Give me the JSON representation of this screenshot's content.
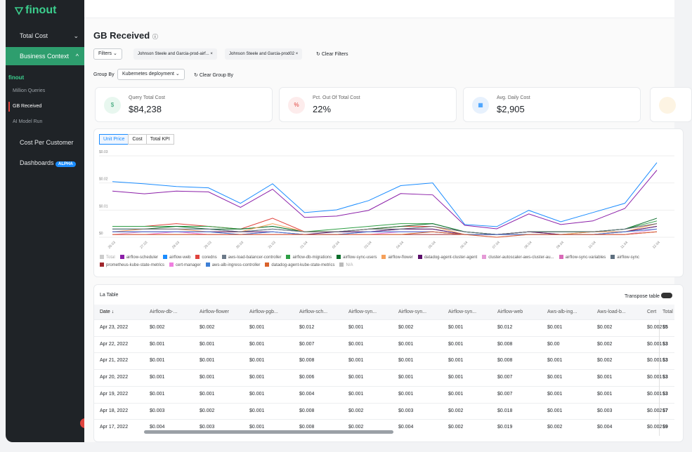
{
  "sidebar": {
    "logo": "finout",
    "items": [
      "Total Cost",
      "Business Context"
    ],
    "section": "finout",
    "subitems": [
      "Million Queries",
      "GB Received",
      "AI Model Run"
    ],
    "bottom_items": [
      "Cost Per Customer",
      "Dashboards"
    ],
    "badge": "ALPHA"
  },
  "header": {
    "title": "GB Received"
  },
  "filters": {
    "button": "Filters",
    "chips": [
      "Johnson Steele and Garcia-prod-airf...",
      "Johnson Steele and Garcia-prod02"
    ],
    "clear": "Clear Filters",
    "group_label": "Group By",
    "group_value": "Kubernetes deployment",
    "group_clear": "Clear Group By"
  },
  "kpis": [
    {
      "label": "Query Total Cost",
      "value": "$84,238"
    },
    {
      "label": "Pct. Out Of Total Cost",
      "value": "22%"
    },
    {
      "label": "Avg. Daily Cost",
      "value": "$2,905"
    }
  ],
  "tabs": [
    "Unit Price",
    "Cost",
    "Total KPI"
  ],
  "chart": {
    "type": "line",
    "categories": [
      "26.03",
      "27.03",
      "28.03",
      "29.03",
      "30.03",
      "31.03",
      "01.04",
      "02.04",
      "03.04",
      "04.04",
      "05.04",
      "06.04",
      "07.04",
      "08.04",
      "09.04",
      "10.04",
      "11.04",
      "12.04"
    ],
    "ylim": [
      0,
      0.03
    ],
    "yticks": [
      {
        "value": 0,
        "label": "$0"
      },
      {
        "value": 0.01,
        "label": "$0.01"
      },
      {
        "value": 0.02,
        "label": "$0.02"
      },
      {
        "value": 0.03,
        "label": "$0.03"
      }
    ],
    "grid": true,
    "series": [
      {
        "name": "Total",
        "color": "#cccccc"
      },
      {
        "name": "airflow-scheduler",
        "color": "#8b1fa8",
        "values": [
          0.017,
          0.016,
          0.017,
          0.0167,
          0.011,
          0.0177,
          0.0073,
          0.0078,
          0.0099,
          0.0161,
          0.0156,
          0.0044,
          0.0031,
          0.0086,
          0.0047,
          0.006,
          0.0106,
          0.0247
        ]
      },
      {
        "name": "airflow-web",
        "color": "#1a8cff",
        "values": [
          0.0205,
          0.0197,
          0.0187,
          0.0182,
          0.0125,
          0.0197,
          0.0091,
          0.0101,
          0.0135,
          0.019,
          0.02,
          0.0047,
          0.0039,
          0.0099,
          0.0057,
          0.0091,
          0.0125,
          0.0275
        ]
      },
      {
        "name": "coredns",
        "color": "#e0443e",
        "values": [
          0.004,
          0.004,
          0.005,
          0.004,
          0.003,
          0.007,
          0.002,
          0.002,
          0.003,
          0.004,
          0.004,
          0.002,
          0.001,
          0.002,
          0.002,
          0.002,
          0.003,
          0.005
        ]
      },
      {
        "name": "aws-load-balancer-controller",
        "color": "#6c7a89",
        "values": [
          0.003,
          0.003,
          0.003,
          0.003,
          0.002,
          0.003,
          0.002,
          0.002,
          0.002,
          0.003,
          0.003,
          0.001,
          0.001,
          0.002,
          0.001,
          0.002,
          0.002,
          0.004
        ]
      },
      {
        "name": "airflow-db-migrations",
        "color": "#2e9e44",
        "values": [
          0.004,
          0.004,
          0.004,
          0.004,
          0.003,
          0.004,
          0.002,
          0.003,
          0.004,
          0.005,
          0.005,
          0.002,
          0.001,
          0.002,
          0.002,
          0.002,
          0.003,
          0.006
        ]
      },
      {
        "name": "airflow-sync-users",
        "color": "#0b6e2b",
        "values": [
          0.003,
          0.003,
          0.004,
          0.003,
          0.003,
          0.004,
          0.002,
          0.002,
          0.003,
          0.004,
          0.005,
          0.002,
          0.001,
          0.002,
          0.002,
          0.002,
          0.003,
          0.007
        ]
      },
      {
        "name": "airflow-flower",
        "color": "#f5a05a",
        "values": [
          0.002,
          0.003,
          0.003,
          0.002,
          0.002,
          0.005,
          0.002,
          0.002,
          0.003,
          0.003,
          0.004,
          0.001,
          0.001,
          0.002,
          0.001,
          0.002,
          0.002,
          0.005
        ]
      },
      {
        "name": "datadog-agent-cluster-agent",
        "color": "#5b0f6b",
        "values": [
          0.002,
          0.002,
          0.002,
          0.002,
          0.002,
          0.002,
          0.001,
          0.002,
          0.002,
          0.003,
          0.003,
          0.001,
          0.001,
          0.002,
          0.001,
          0.001,
          0.002,
          0.004
        ]
      },
      {
        "name": "cluster-autoscaler-aws-cluster-au...",
        "color": "#e59ad6",
        "values": [
          0.001,
          0.002,
          0.002,
          0.001,
          0.001,
          0.002,
          0.001,
          0.001,
          0.002,
          0.002,
          0.002,
          0.001,
          0.001,
          0.001,
          0.001,
          0.001,
          0.001,
          0.003
        ]
      },
      {
        "name": "airflow-sync-variables",
        "color": "#d86ab8",
        "values": [
          0.002,
          0.002,
          0.002,
          0.002,
          0.001,
          0.002,
          0.001,
          0.001,
          0.002,
          0.002,
          0.002,
          0.001,
          0.001,
          0.001,
          0.001,
          0.001,
          0.002,
          0.003
        ]
      },
      {
        "name": "airflow-sync",
        "color": "#5f7080",
        "values": [
          0.003,
          0.003,
          0.003,
          0.003,
          0.002,
          0.003,
          0.002,
          0.002,
          0.003,
          0.003,
          0.004,
          0.002,
          0.001,
          0.002,
          0.002,
          0.002,
          0.003,
          0.005
        ]
      },
      {
        "name": "prometheus-kube-state-metrics",
        "color": "#a0262c",
        "values": [
          0.001,
          0.001,
          0.001,
          0.001,
          0.001,
          0.001,
          0.001,
          0.001,
          0.001,
          0.001,
          0.001,
          0.001,
          0.001,
          0.001,
          0.001,
          0.001,
          0.001,
          0.002
        ]
      },
      {
        "name": "cert-manager",
        "color": "#f07fe0",
        "values": [
          0.001,
          0.001,
          0.002,
          0.001,
          0.001,
          0.001,
          0.001,
          0.001,
          0.001,
          0.002,
          0.002,
          0.001,
          0,
          0.001,
          0.001,
          0.001,
          0.001,
          0.002
        ]
      },
      {
        "name": "aws-alb-ingress-controller",
        "color": "#3d7fd6",
        "values": [
          0.002,
          0.002,
          0.002,
          0.002,
          0.001,
          0.002,
          0.001,
          0.001,
          0.002,
          0.002,
          0.002,
          0.001,
          0.001,
          0.001,
          0.001,
          0.001,
          0.002,
          0.003
        ]
      },
      {
        "name": "datadog-agent-kube-state-metrics",
        "color": "#d9622b",
        "values": [
          0.001,
          0.001,
          0.001,
          0.001,
          0.001,
          0.001,
          0.001,
          0.001,
          0.001,
          0.001,
          0.002,
          0.001,
          0,
          0.001,
          0.001,
          0.001,
          0.001,
          0.002
        ]
      },
      {
        "name": "N/A",
        "color": "#bbbbbb"
      }
    ]
  },
  "table": {
    "title": "La Table",
    "transpose": "Transpose table",
    "columns": [
      "Date ↓",
      "Airflow-db-...",
      "Airflow-flower",
      "Airflow-pgb...",
      "Airflow-sch...",
      "Airflow-syn...",
      "Airflow-syn...",
      "Airflow-syn...",
      "Airflow-web",
      "Aws-alb-ing...",
      "Aws-load-b...",
      "Cert",
      "Total"
    ],
    "rows": [
      [
        "Apr 23, 2022",
        "$0.002",
        "$0.002",
        "$0.001",
        "$0.012",
        "$0.001",
        "$0.002",
        "$0.001",
        "$0.012",
        "$0.001",
        "$0.002",
        "$0.002",
        "$5"
      ],
      [
        "Apr 22, 2022",
        "$0.001",
        "$0.001",
        "$0.001",
        "$0.007",
        "$0.001",
        "$0.001",
        "$0.001",
        "$0.008",
        "$0.00",
        "$0.002",
        "$0.001",
        "$3"
      ],
      [
        "Apr 21, 2022",
        "$0.001",
        "$0.001",
        "$0.001",
        "$0.008",
        "$0.001",
        "$0.001",
        "$0.001",
        "$0.008",
        "$0.001",
        "$0.002",
        "$0.001",
        "$3"
      ],
      [
        "Apr 20, 2022",
        "$0.001",
        "$0.001",
        "$0.001",
        "$0.006",
        "$0.001",
        "$0.001",
        "$0.001",
        "$0.007",
        "$0.001",
        "$0.001",
        "$0.001",
        "$3"
      ],
      [
        "Apr 19, 2022",
        "$0.001",
        "$0.001",
        "$0.001",
        "$0.004",
        "$0.001",
        "$0.001",
        "$0.001",
        "$0.007",
        "$0.001",
        "$0.001",
        "$0.001",
        "$3"
      ],
      [
        "Apr 18, 2022",
        "$0.003",
        "$0.002",
        "$0.001",
        "$0.008",
        "$0.002",
        "$0.003",
        "$0.002",
        "$0.018",
        "$0.001",
        "$0.003",
        "$0.002",
        "$7"
      ],
      [
        "Apr 17, 2022",
        "$0.004",
        "$0.003",
        "$0.001",
        "$0.008",
        "$0.002",
        "$0.004",
        "$0.002",
        "$0.019",
        "$0.002",
        "$0.004",
        "$0.002",
        "$9"
      ]
    ]
  }
}
